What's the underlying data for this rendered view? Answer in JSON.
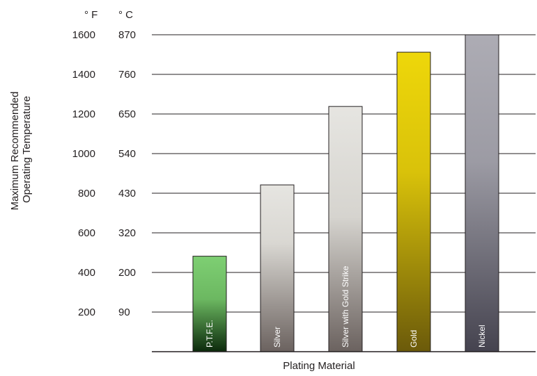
{
  "chart_data": {
    "type": "bar",
    "title": "",
    "xlabel": "Plating Material",
    "ylabel_lines": [
      "Maximum Recommended",
      "Operating Temperature"
    ],
    "units": {
      "fahrenheit": "° F",
      "celsius": "° C"
    },
    "categories": [
      "P.T.F.E.",
      "Silver",
      "Silver with Gold Strike",
      "Gold",
      "Nickel"
    ],
    "values_fahrenheit": [
      482,
      842,
      1238,
      1512,
      1600
    ],
    "ylim_fahrenheit": [
      0,
      1600
    ],
    "y_ticks_fahrenheit": [
      "200",
      "400",
      "600",
      "800",
      "1000",
      "1200",
      "1400",
      "1600"
    ],
    "y_ticks_celsius": [
      "90",
      "200",
      "320",
      "430",
      "540",
      "650",
      "760",
      "870"
    ],
    "grid": true,
    "colors": {
      "ptfe": [
        "#7ecf73",
        "#0c2a0c"
      ],
      "silver": [
        "#e4e3df",
        "#6b625f"
      ],
      "silver_gold_strike": [
        "#e4e3df",
        "#6b625f"
      ],
      "gold": [
        "#ecd60a",
        "#6b5a0a"
      ],
      "nickel": [
        "#abaab3",
        "#45434f"
      ]
    }
  }
}
